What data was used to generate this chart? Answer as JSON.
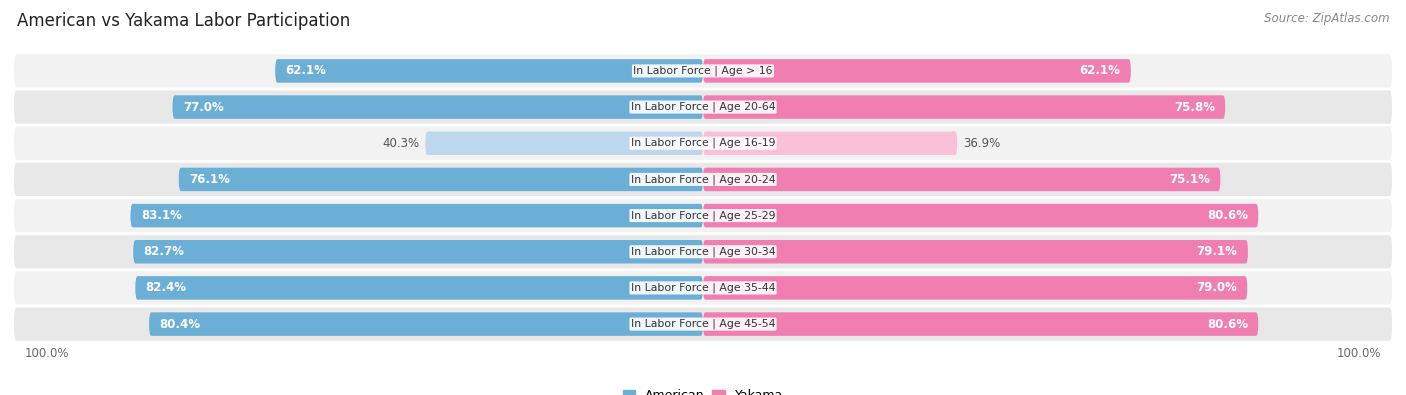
{
  "title": "American vs Yakama Labor Participation",
  "source": "Source: ZipAtlas.com",
  "categories": [
    "In Labor Force | Age > 16",
    "In Labor Force | Age 20-64",
    "In Labor Force | Age 16-19",
    "In Labor Force | Age 20-24",
    "In Labor Force | Age 25-29",
    "In Labor Force | Age 30-34",
    "In Labor Force | Age 35-44",
    "In Labor Force | Age 45-54"
  ],
  "american_values": [
    62.1,
    77.0,
    40.3,
    76.1,
    83.1,
    82.7,
    82.4,
    80.4
  ],
  "yakama_values": [
    62.1,
    75.8,
    36.9,
    75.1,
    80.6,
    79.1,
    79.0,
    80.6
  ],
  "american_color": "#6BAED6",
  "american_color_light": "#BDD7EE",
  "yakama_color": "#F07EB0",
  "yakama_color_light": "#F9C0D8",
  "row_bg_light": "#F2F2F2",
  "row_bg_dark": "#E8E8E8",
  "max_value": 100.0,
  "figsize": [
    14.06,
    3.95
  ],
  "dpi": 100
}
